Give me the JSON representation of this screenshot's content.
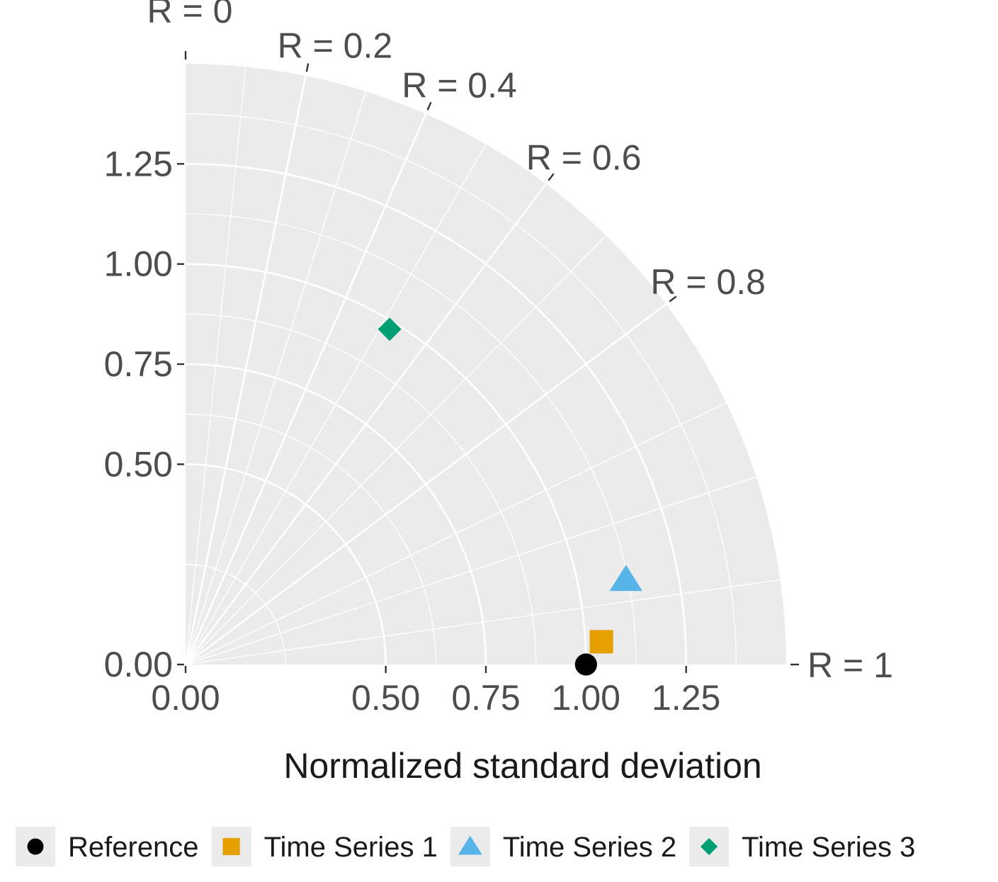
{
  "chart_data": {
    "type": "scatter",
    "subtype": "taylor-diagram",
    "title": "",
    "xlabel": "Normalized standard deviation",
    "ylabel": "",
    "sd_range": [
      0,
      1.5
    ],
    "x_ticks": [
      0.0,
      0.5,
      0.75,
      1.0,
      1.25
    ],
    "x_tick_labels": [
      "0.00",
      "0.50",
      "0.75",
      "1.00",
      "1.25"
    ],
    "y_ticks": [
      0.0,
      0.5,
      0.75,
      1.0,
      1.25
    ],
    "y_tick_labels": [
      "0.00",
      "0.50",
      "0.75",
      "1.00",
      "1.25"
    ],
    "sd_arcs": [
      0.5,
      0.75,
      1.0,
      1.25,
      1.5
    ],
    "correlation_ticks": [
      0,
      0.2,
      0.4,
      0.6,
      0.8,
      1
    ],
    "correlation_labels": [
      "R = 0",
      "R = 0.2",
      "R = 0.4",
      "R = 0.6",
      "R = 0.8",
      "R = 1"
    ],
    "correlation_gridlines": [
      0.1,
      0.2,
      0.3,
      0.4,
      0.5,
      0.6,
      0.7,
      0.8,
      0.9,
      0.95,
      0.99
    ],
    "grid": true,
    "legend_position": "bottom",
    "series": [
      {
        "name": "Reference",
        "sd": 1.0,
        "r": 1.0,
        "shape": "circle",
        "color": "#000000"
      },
      {
        "name": "Time Series 1",
        "sd": 1.04,
        "r": 0.9985,
        "shape": "square",
        "color": "#E69F00"
      },
      {
        "name": "Time Series 2",
        "sd": 1.12,
        "r": 0.982,
        "shape": "triangle",
        "color": "#56B4E9"
      },
      {
        "name": "Time Series 3",
        "sd": 0.98,
        "r": 0.52,
        "shape": "diamond",
        "color": "#009E73"
      }
    ]
  },
  "colors": {
    "panel_background": "#EBEBEB",
    "grid": "#FFFFFF",
    "tick_text": "#4D4D4D",
    "legend_key_background": "#EBEBEB"
  }
}
